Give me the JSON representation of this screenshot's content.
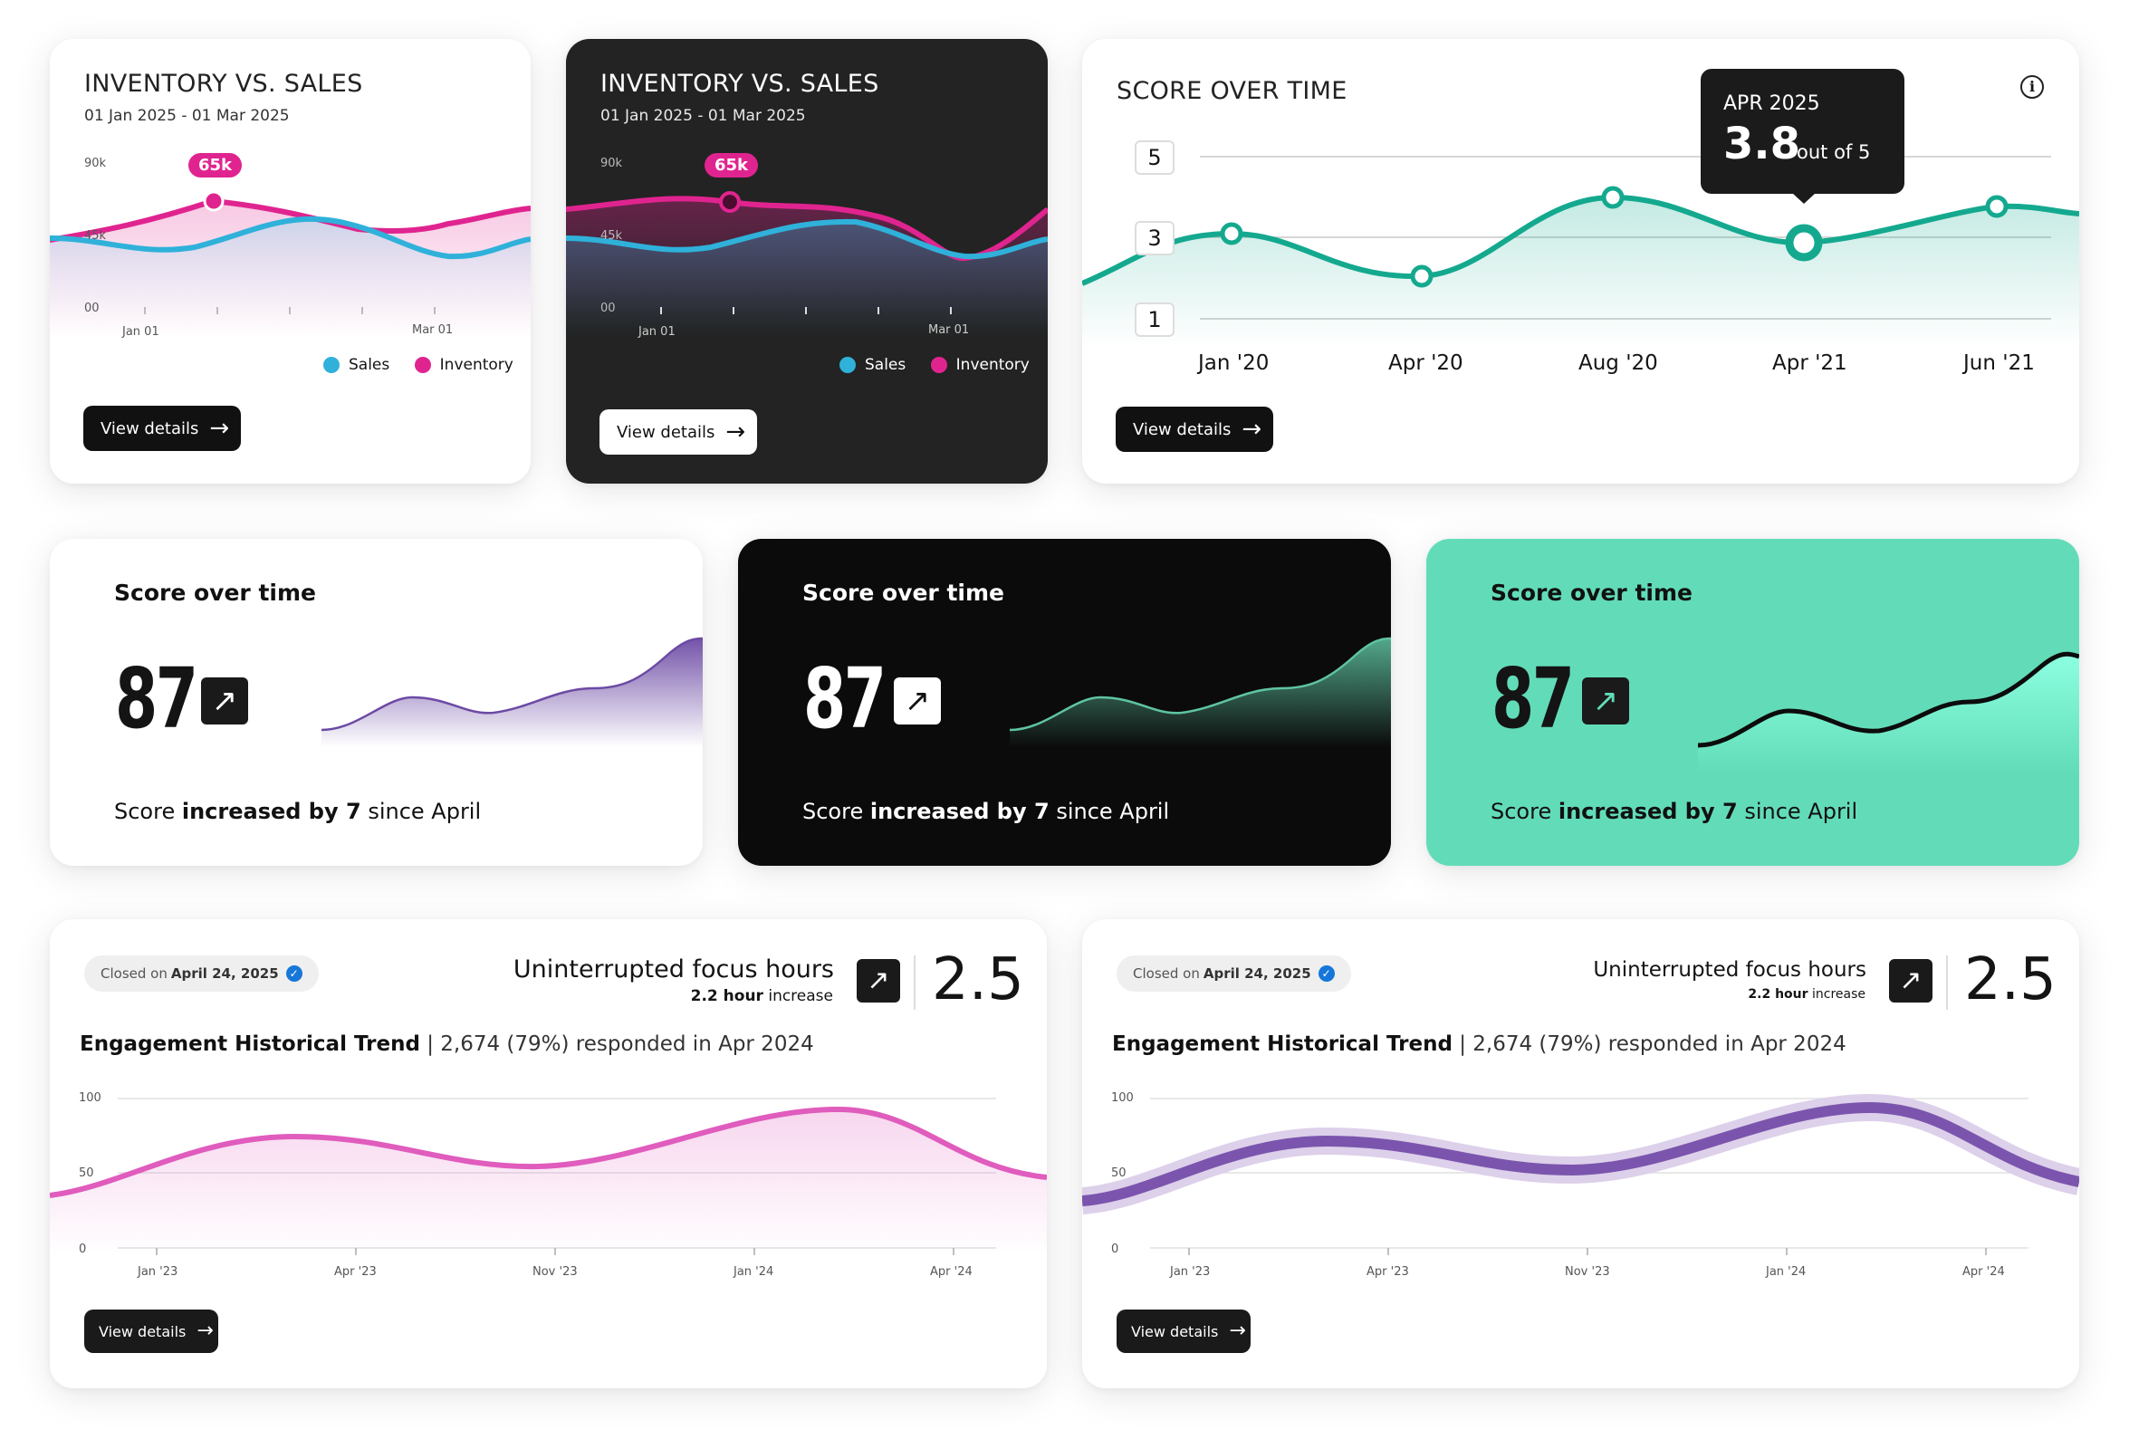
{
  "inventory_card_light": {
    "title": "INVENTORY VS. SALES",
    "date_range": "01 Jan 2025 - 01 Mar 2025",
    "y_ticks": [
      "90k",
      "45k",
      "00"
    ],
    "x_ticks": [
      "Jan 01",
      "Mar 01"
    ],
    "highlight_label": "65k",
    "legend": [
      "Sales",
      "Inventory"
    ],
    "button_label": "View details",
    "colors": {
      "sales": "#2fb1da",
      "inventory": "#e0248f"
    }
  },
  "inventory_card_dark": {
    "title": "INVENTORY VS. SALES",
    "date_range": "01 Jan 2025 - 01 Mar 2025",
    "y_ticks": [
      "90k",
      "45k",
      "00"
    ],
    "x_ticks": [
      "Jan 01",
      "Mar 01"
    ],
    "highlight_label": "65k",
    "legend": [
      "Sales",
      "Inventory"
    ],
    "button_label": "View details"
  },
  "score_time_card": {
    "title": "SCORE OVER TIME",
    "y_ticks": [
      "5",
      "3",
      "1"
    ],
    "x_ticks": [
      "Jan '20",
      "Apr '20",
      "Aug '20",
      "Apr '21",
      "Jun '21"
    ],
    "tooltip_date": "APR 2025",
    "tooltip_value": "3.8",
    "tooltip_suffix": "out of 5",
    "button_label": "View details",
    "info_icon": "info-icon",
    "color": "#14a98f"
  },
  "score_cards": [
    {
      "title": "Score over time",
      "value": "87",
      "foot_pre": "Score ",
      "foot_bold": "increased by 7",
      "foot_post": " since April",
      "theme": "light"
    },
    {
      "title": "Score over time",
      "value": "87",
      "foot_pre": "Score ",
      "foot_bold": "increased by 7",
      "foot_post": " since April",
      "theme": "dark"
    },
    {
      "title": "Score over time",
      "value": "87",
      "foot_pre": "Score ",
      "foot_bold": "increased by 7",
      "foot_post": " since April",
      "theme": "mint"
    }
  ],
  "engagement_cards": [
    {
      "pill_prefix": "Closed on ",
      "pill_date": "April 24, 2025",
      "metric_title": "Uninterrupted focus hours",
      "metric_sub_bold": "2.2 hour",
      "metric_sub_rest": " increase",
      "metric_value": "2.5",
      "trend_title": "Engagement Historical Trend",
      "trend_rest": " | 2,674 (79%) responded in Apr 2024",
      "y_ticks": [
        "100",
        "50",
        "0"
      ],
      "x_ticks": [
        "Jan '23",
        "Apr '23",
        "Nov '23",
        "Jan '24",
        "Apr '24"
      ],
      "button_label": "View details",
      "color": "#e05cbd"
    },
    {
      "pill_prefix": "Closed on ",
      "pill_date": "April 24, 2025",
      "metric_title": "Uninterrupted focus hours",
      "metric_sub_bold": "2.2 hour",
      "metric_sub_rest": " increase",
      "metric_value": "2.5",
      "trend_title": "Engagement Historical Trend",
      "trend_rest": " | 2,674 (79%) responded in Apr 2024",
      "y_ticks": [
        "100",
        "50",
        "0"
      ],
      "x_ticks": [
        "Jan '23",
        "Apr '23",
        "Nov '23",
        "Jan '24",
        "Apr '24"
      ],
      "button_label": "View details",
      "color": "#7b55ad"
    }
  ]
}
